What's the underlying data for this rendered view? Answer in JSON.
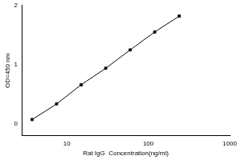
{
  "chart_data": {
    "type": "line",
    "x_label": "Rat IgG  Concentration(ng/ml)",
    "y_label": "OD=450 nm",
    "x": [
      3.75,
      7.5,
      15,
      30,
      60,
      120,
      240
    ],
    "values": [
      0.075,
      0.34,
      0.66,
      0.94,
      1.25,
      1.55,
      1.82
    ],
    "color": "#000000",
    "marker": "square",
    "line_style": "solid",
    "log": "x",
    "xlim": [
      2.8,
      1000
    ],
    "xticks": [
      10,
      100,
      1000
    ],
    "ylim": [
      -0.2,
      2
    ],
    "yticks": [
      0,
      1,
      2
    ],
    "grid": false
  }
}
